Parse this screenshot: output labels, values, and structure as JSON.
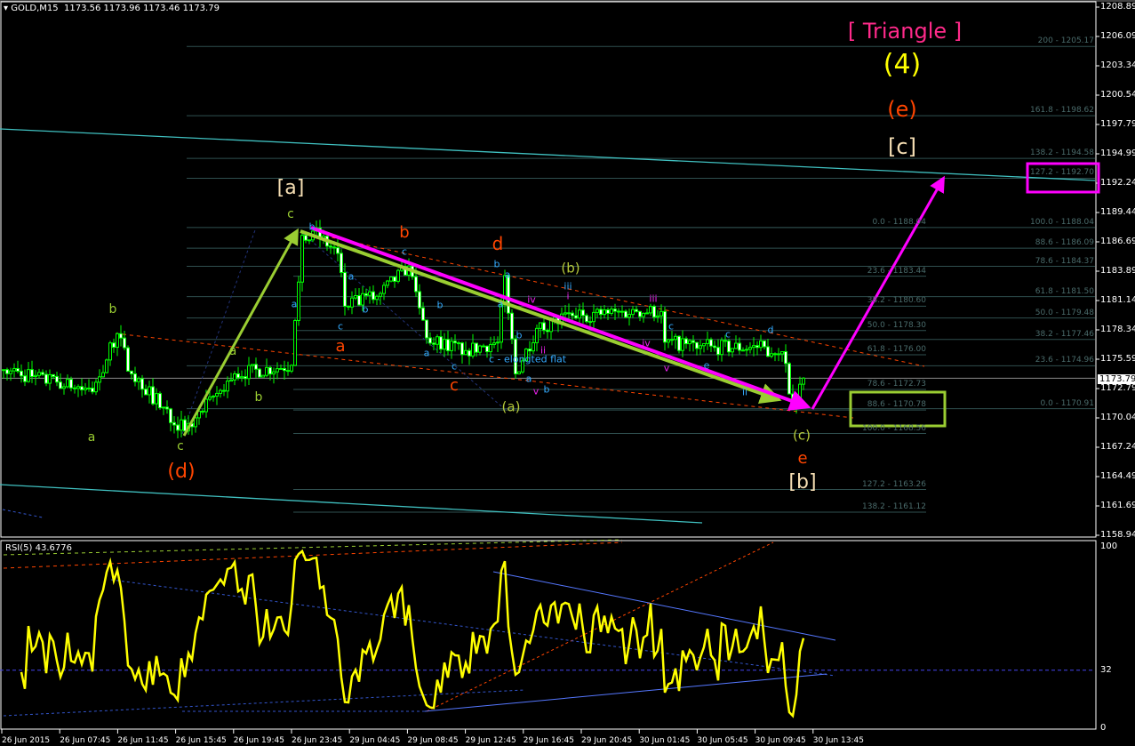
{
  "header": {
    "symbol": "GOLD,M15",
    "ohlc": "1173.56 1173.96 1173.46 1173.79"
  },
  "price_axis": [
    "1208.89",
    "1206.09",
    "1203.34",
    "1200.54",
    "1197.79",
    "1194.99",
    "1192.24",
    "1189.44",
    "1186.69",
    "1183.89",
    "1181.14",
    "1178.34",
    "1175.59",
    "1172.79",
    "1170.04",
    "1167.24",
    "1164.49",
    "1161.69",
    "1158.94"
  ],
  "current_price": "1173.79",
  "time_axis": [
    "26 Jun 2015",
    "26 Jun 07:45",
    "26 Jun 11:45",
    "26 Jun 15:45",
    "26 Jun 19:45",
    "26 Jun 23:45",
    "29 Jun 04:45",
    "29 Jun 08:45",
    "29 Jun 12:45",
    "29 Jun 16:45",
    "29 Jun 20:45",
    "30 Jun 01:45",
    "30 Jun 05:45",
    "30 Jun 09:45",
    "30 Jun 13:45"
  ],
  "fib_right": [
    "200 - 1205.17",
    "161.8 - 1198.62",
    "138.2 - 1194.58",
    "127.2 - 1192.70",
    "100.0 - 1188.04",
    "88.6 - 1186.09",
    "78.6 - 1184.37",
    "61.8 - 1181.50",
    "50.0 - 1179.48",
    "38.2 - 1177.46",
    "23.6  - 1174.96",
    "0.0 - 1170.91"
  ],
  "fib_mid": [
    "0.0 - 1188.04",
    "23.6 - 1183.44",
    "38.2 - 1180.60",
    "50.0 - 1178.30",
    "61.8 - 1176.00",
    "78.6 - 1172.73",
    "88.6 - 1170.78",
    "100.0 - 1168.56",
    "127.2 - 1163.26",
    "138.2 - 1161.12"
  ],
  "annotations": [
    "[ Triangle ]",
    "(4)",
    "(e)",
    "[c]",
    "[a]",
    "[b]",
    "(d)",
    "e",
    "(c)",
    "(a)",
    "(b)",
    "d",
    "b",
    "a",
    "c",
    "b",
    "a",
    "c",
    "a",
    "b",
    "c",
    "b",
    "a",
    "a",
    "b",
    "c",
    "c",
    "b",
    "a",
    "c",
    "b",
    "a",
    "a",
    "b",
    "c - elongted flat",
    "a",
    "b",
    "c",
    "e",
    "c",
    "d",
    "iii",
    "ii",
    "iv",
    "v",
    "ii",
    "i",
    "iii",
    "iv",
    "v"
  ],
  "rsi": {
    "label": "RSI(5) 43.6776",
    "levels": [
      "100",
      "32",
      "0"
    ]
  },
  "colors": {
    "bull": "#00ff00",
    "wave_major": "#ff4500",
    "wave_minor": "#33aaff",
    "wave_sub": "#ee22ee",
    "triangle": "#ff2a8a",
    "arrow_green": "#9acd32",
    "arrow_magenta": "#ff00ff",
    "channel": "#40c0c0",
    "rsi_line": "#ffff00"
  },
  "chart_data": {
    "type": "candlestick",
    "symbol": "GOLD",
    "timeframe": "M15",
    "ylim": [
      1158.94,
      1208.89
    ],
    "price_path": [
      [
        0,
        1174.6
      ],
      [
        25,
        1172.5
      ],
      [
        32,
        1178.0
      ],
      [
        36,
        1174.2
      ],
      [
        51,
        1168.8
      ],
      [
        65,
        1174.2
      ],
      [
        81,
        1175.0
      ],
      [
        84,
        1187.3
      ],
      [
        87,
        1187.7
      ],
      [
        94,
        1185.6
      ],
      [
        96,
        1180.6
      ],
      [
        106,
        1181.8
      ],
      [
        114,
        1184.4
      ],
      [
        119,
        1177.6
      ],
      [
        130,
        1176.4
      ],
      [
        139,
        1177.2
      ],
      [
        141,
        1183.5
      ],
      [
        144,
        1174.2
      ],
      [
        150,
        1178.5
      ],
      [
        160,
        1179.7
      ],
      [
        178,
        1180.1
      ],
      [
        185,
        1180.1
      ],
      [
        186,
        1177.2
      ],
      [
        200,
        1176.7
      ],
      [
        212,
        1176.7
      ],
      [
        219,
        1176.3
      ],
      [
        222,
        1171.2
      ],
      [
        225,
        1173.79
      ]
    ],
    "indicator": {
      "name": "RSI",
      "period": 5,
      "last": 43.6776,
      "ylim": [
        0,
        100
      ],
      "level": 32
    }
  }
}
